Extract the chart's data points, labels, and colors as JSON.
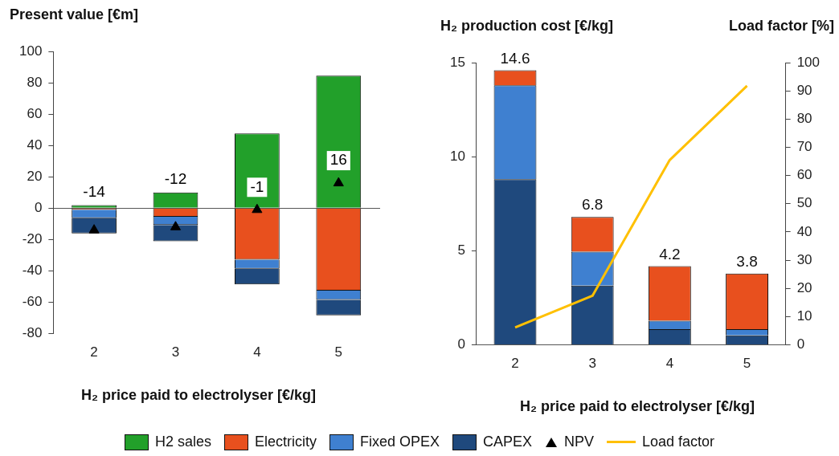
{
  "chart_data": [
    {
      "type": "bar",
      "ylabel": "Present value [€m]",
      "xlabel": "H₂ price paid to electrolyser [€/kg]",
      "categories": [
        "2",
        "3",
        "4",
        "5"
      ],
      "stacked": true,
      "ylim": [
        -80,
        100
      ],
      "yticks": [
        -80,
        -60,
        -40,
        -20,
        0,
        20,
        40,
        60,
        80,
        100
      ],
      "legend": "bottom",
      "series": [
        {
          "name": "H2 sales",
          "color": "#22a02a",
          "values": [
            2,
            10,
            47.7,
            84.5
          ]
        },
        {
          "name": "Electricity",
          "color": "#e8501e",
          "values": [
            -1,
            -5.4,
            -32.9,
            -52.5
          ]
        },
        {
          "name": "Fixed OPEX",
          "color": "#3f80d0",
          "values": [
            -5.4,
            -5.3,
            -5.7,
            -6
          ]
        },
        {
          "name": "CAPEX",
          "color": "#1f497d",
          "values": [
            -9.7,
            -10.4,
            -10,
            -9.8
          ]
        },
        {
          "name": "NPV",
          "type": "scatter",
          "marker": "triangle",
          "color": "#000000",
          "x": [
            "2",
            "3",
            "4",
            "5"
          ],
          "values": [
            -14,
            -12,
            -1,
            16
          ],
          "value_labels": [
            "-14",
            "-12",
            "-1",
            "16"
          ]
        }
      ]
    },
    {
      "type": "bar",
      "ylabel": "H₂ production cost [€/kg]",
      "y2label": "Load factor [%]",
      "xlabel": "H₂ price paid to electrolyser [€/kg]",
      "categories": [
        "2",
        "3",
        "4",
        "5"
      ],
      "stacked": true,
      "ylim": [
        0,
        15
      ],
      "yticks": [
        0,
        5,
        10,
        15
      ],
      "y2lim": [
        0,
        100
      ],
      "y2ticks": [
        0,
        10,
        20,
        30,
        40,
        50,
        60,
        70,
        80,
        90,
        100
      ],
      "legend": "bottom",
      "totals": [
        "14.6",
        "6.8",
        "4.2",
        "3.8"
      ],
      "series": [
        {
          "name": "CAPEX",
          "color": "#1f497d",
          "values": [
            8.8,
            3.15,
            0.84,
            0.51
          ]
        },
        {
          "name": "Fixed OPEX",
          "color": "#3f80d0",
          "values": [
            5,
            1.8,
            0.44,
            0.33
          ]
        },
        {
          "name": "Electricity",
          "color": "#e8501e",
          "values": [
            0.8,
            1.85,
            2.9,
            2.95
          ]
        },
        {
          "name": "Load factor",
          "type": "line",
          "axis": "y2",
          "marker": "none",
          "color": "#ffc000",
          "values": [
            6.2,
            17.4,
            65.5,
            91.8
          ]
        }
      ]
    }
  ]
}
